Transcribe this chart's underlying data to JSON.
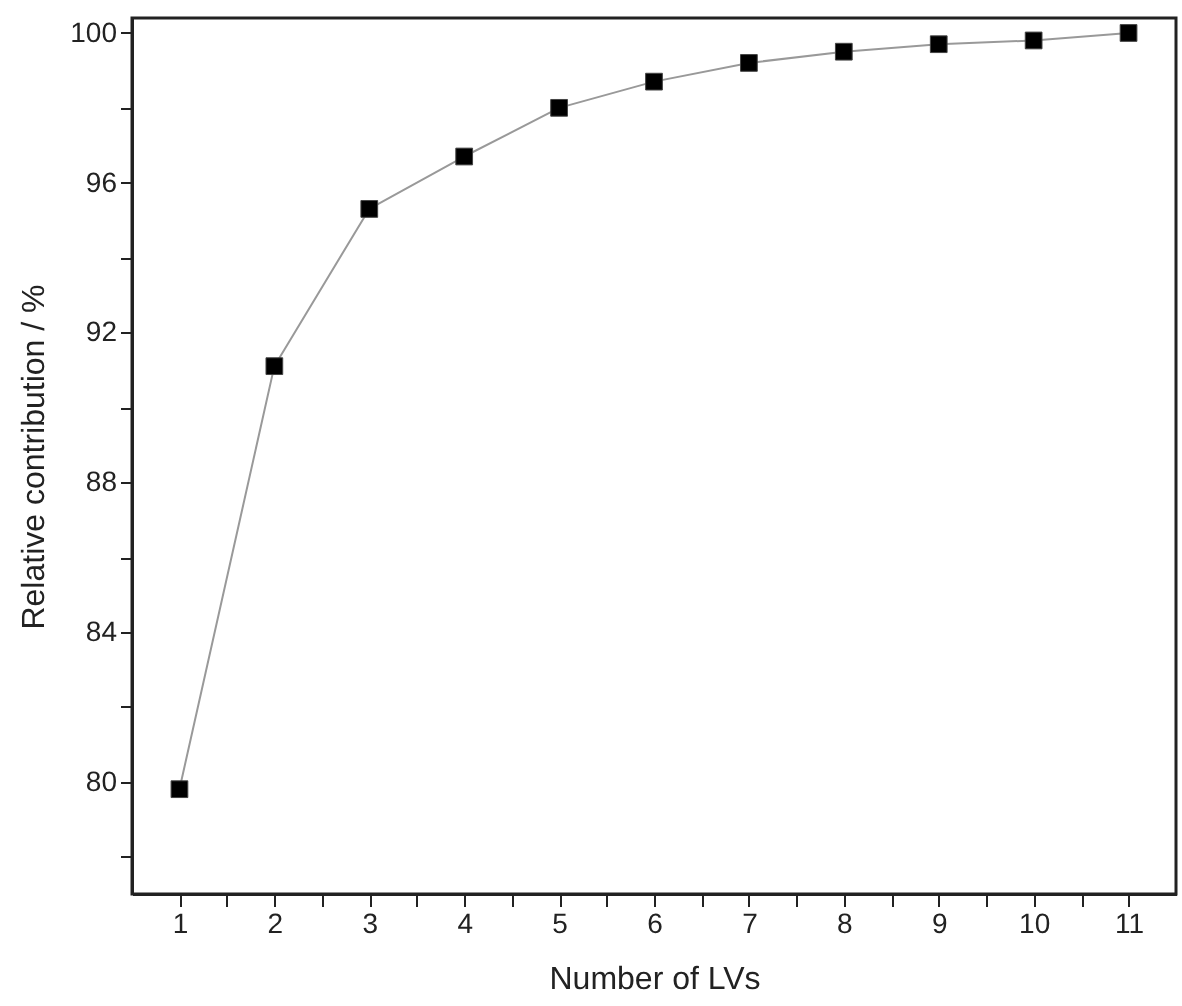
{
  "chart_data": {
    "type": "line",
    "xlabel": "Number of LVs",
    "ylabel": "Relative contribution / %",
    "x": [
      1,
      2,
      3,
      4,
      5,
      6,
      7,
      8,
      9,
      10,
      11
    ],
    "series": [
      {
        "color": "#000000",
        "values": [
          79.8,
          91.1,
          95.3,
          96.7,
          98.0,
          98.7,
          99.2,
          99.5,
          99.7,
          99.8,
          100.0
        ]
      }
    ],
    "xlim": [
      0.5,
      11.5
    ],
    "ylim": [
      77,
      100.4
    ],
    "xticks": [
      1,
      {
        "value": 1.5,
        "label": null
      },
      2,
      {
        "value": 2.5,
        "label": null
      },
      3,
      {
        "value": 3.5,
        "label": null
      },
      4,
      {
        "value": 4.5,
        "label": null
      },
      5,
      {
        "value": 5.5,
        "label": null
      },
      6,
      {
        "value": 6.5,
        "label": null
      },
      7,
      {
        "value": 7.5,
        "label": null
      },
      8,
      {
        "value": 8.5,
        "label": null
      },
      9,
      {
        "value": 9.5,
        "label": null
      },
      10,
      {
        "value": 10.5,
        "label": null
      },
      11
    ],
    "yticks": [
      {
        "value": 78,
        "label": null
      },
      80,
      {
        "value": 82,
        "label": null
      },
      84,
      {
        "value": 86,
        "label": null
      },
      88,
      {
        "value": 90,
        "label": null
      },
      92,
      {
        "value": 94,
        "label": null
      },
      96,
      {
        "value": 98,
        "label": null
      },
      100
    ],
    "marker": "square",
    "line_style": "solid",
    "grid": false
  }
}
